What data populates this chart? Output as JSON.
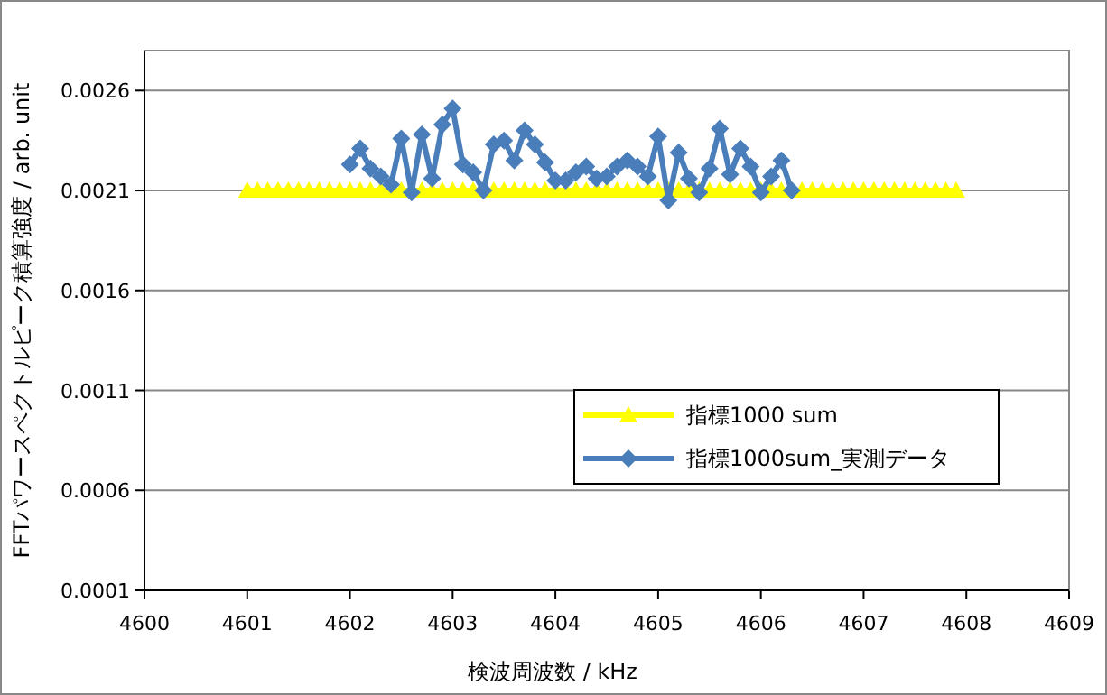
{
  "chart_data": {
    "type": "line",
    "xlabel": "検波周波数 / kHz",
    "ylabel": "FFTパワースペクトルピーク積算強度 / arb. unit",
    "xlim": [
      4600,
      4609
    ],
    "xticks": [
      4600,
      4601,
      4602,
      4603,
      4604,
      4605,
      4606,
      4607,
      4608,
      4609
    ],
    "ylim": [
      0.0001,
      0.0028
    ],
    "yticks": [
      0.0001,
      0.0006,
      0.0011,
      0.0016,
      0.0021,
      0.0026
    ],
    "grid": "y",
    "legend": "bottom right",
    "line_style": "solid",
    "series": [
      {
        "name": "指標1000 sum",
        "color": "#ffff00",
        "marker": "triangle",
        "x": [
          4601.0,
          4601.1,
          4601.2,
          4601.3,
          4601.4,
          4601.5,
          4601.6,
          4601.7,
          4601.8,
          4601.9,
          4602.0,
          4602.1,
          4602.2,
          4602.3,
          4602.4,
          4602.5,
          4602.6,
          4602.7,
          4602.8,
          4602.9,
          4603.0,
          4603.1,
          4603.2,
          4603.3,
          4603.4,
          4603.5,
          4603.6,
          4603.7,
          4603.8,
          4603.9,
          4604.0,
          4604.1,
          4604.2,
          4604.3,
          4604.4,
          4604.5,
          4604.6,
          4604.7,
          4604.8,
          4604.9,
          4605.0,
          4605.1,
          4605.2,
          4605.3,
          4605.4,
          4605.5,
          4605.6,
          4605.7,
          4605.8,
          4605.9,
          4606.0,
          4606.1,
          4606.2,
          4606.3,
          4606.4,
          4606.5,
          4606.6,
          4606.7,
          4606.8,
          4606.9,
          4607.0,
          4607.1,
          4607.2,
          4607.3,
          4607.4,
          4607.5,
          4607.6,
          4607.7,
          4607.8,
          4607.9
        ],
        "values": [
          0.0021,
          0.0021,
          0.0021,
          0.0021,
          0.0021,
          0.0021,
          0.0021,
          0.0021,
          0.0021,
          0.0021,
          0.0021,
          0.0021,
          0.0021,
          0.0021,
          0.0021,
          0.0021,
          0.0021,
          0.0021,
          0.0021,
          0.0021,
          0.0021,
          0.0021,
          0.0021,
          0.0021,
          0.0021,
          0.0021,
          0.0021,
          0.0021,
          0.0021,
          0.0021,
          0.0021,
          0.0021,
          0.0021,
          0.0021,
          0.0021,
          0.0021,
          0.0021,
          0.0021,
          0.0021,
          0.0021,
          0.0021,
          0.0021,
          0.0021,
          0.0021,
          0.0021,
          0.0021,
          0.0021,
          0.0021,
          0.0021,
          0.0021,
          0.0021,
          0.0021,
          0.0021,
          0.0021,
          0.0021,
          0.0021,
          0.0021,
          0.0021,
          0.0021,
          0.0021,
          0.0021,
          0.0021,
          0.0021,
          0.0021,
          0.0021,
          0.0021,
          0.0021,
          0.0021,
          0.0021,
          0.0021
        ]
      },
      {
        "name": "指標1000sum_実測データ",
        "color": "#4a7ebb",
        "marker": "diamond",
        "x": [
          4602.0,
          4602.1,
          4602.2,
          4602.3,
          4602.4,
          4602.5,
          4602.6,
          4602.7,
          4602.8,
          4602.9,
          4603.0,
          4603.1,
          4603.2,
          4603.3,
          4603.4,
          4603.5,
          4603.6,
          4603.7,
          4603.8,
          4603.9,
          4604.0,
          4604.1,
          4604.2,
          4604.3,
          4604.4,
          4604.5,
          4604.6,
          4604.7,
          4604.8,
          4604.9,
          4605.0,
          4605.1,
          4605.2,
          4605.3,
          4605.4,
          4605.5,
          4605.6,
          4605.7,
          4605.8,
          4605.9,
          4606.0,
          4606.1,
          4606.2,
          4606.3
        ],
        "values": [
          0.00223,
          0.00231,
          0.00221,
          0.00217,
          0.00213,
          0.00236,
          0.00209,
          0.00238,
          0.00216,
          0.00243,
          0.00251,
          0.00223,
          0.00219,
          0.0021,
          0.00233,
          0.00235,
          0.00225,
          0.0024,
          0.00233,
          0.00224,
          0.00215,
          0.00215,
          0.00219,
          0.00222,
          0.00216,
          0.00217,
          0.00222,
          0.00225,
          0.00222,
          0.00217,
          0.00237,
          0.00205,
          0.00229,
          0.00216,
          0.00209,
          0.00221,
          0.00241,
          0.00218,
          0.00231,
          0.00222,
          0.00209,
          0.00217,
          0.00225,
          0.0021
        ]
      }
    ]
  }
}
